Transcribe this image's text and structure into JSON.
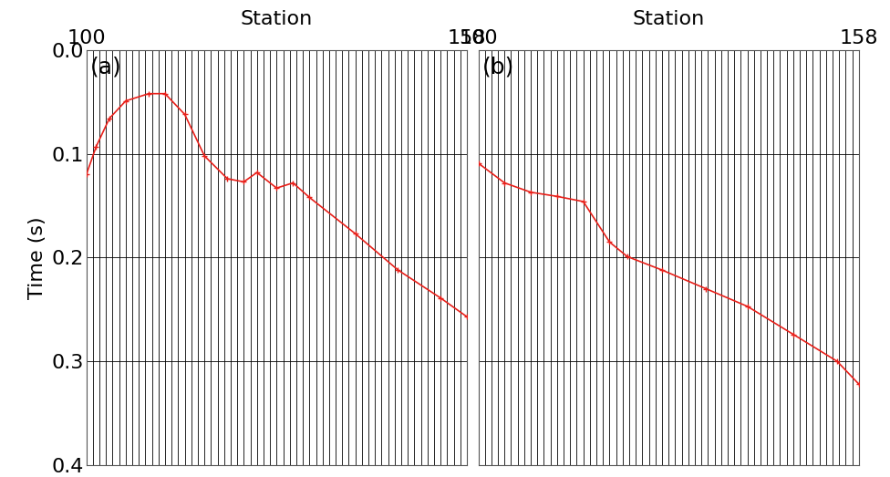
{
  "chart_data": [
    {
      "type": "line",
      "annotation": "(a)",
      "x_label": "Station",
      "y_label": "Time (s)",
      "xlim": [
        100,
        158
      ],
      "xticks": [
        100,
        158
      ],
      "ylim": [
        0.4,
        0
      ],
      "yticks": [
        {
          "value": 0,
          "label": "0.0"
        },
        {
          "value": 0.1,
          "label": "0.1"
        },
        {
          "value": 0.2,
          "label": "0.2"
        },
        {
          "value": 0.3,
          "label": "0.3"
        },
        {
          "value": 0.4,
          "label": "0.4"
        }
      ],
      "grid": true,
      "tick_labels": true,
      "color": "#e8201a",
      "marker": "+",
      "x": [
        100,
        101.5,
        103.5,
        106,
        109.5,
        112,
        115,
        118,
        121.5,
        124,
        126,
        129,
        131.5,
        134,
        141,
        147.5,
        154,
        158
      ],
      "values": [
        0.12,
        0.093,
        0.066,
        0.049,
        0.042,
        0.042,
        0.062,
        0.102,
        0.124,
        0.127,
        0.118,
        0.133,
        0.128,
        0.142,
        0.177,
        0.212,
        0.239,
        0.257
      ]
    },
    {
      "type": "line",
      "annotation": "(b)",
      "x_label": "Station",
      "xlim": [
        100,
        158
      ],
      "xticks": [
        100,
        158
      ],
      "ylim": [
        0.4,
        0
      ],
      "yticks": [
        0,
        0.1,
        0.2,
        0.3,
        0.4
      ],
      "grid": true,
      "tick_labels": "x",
      "color": "#e8201a",
      "marker": "+",
      "x": [
        100,
        104,
        108,
        112,
        116,
        120,
        122.7,
        128,
        134.7,
        141,
        148,
        154.7,
        158
      ],
      "values": [
        0.109,
        0.128,
        0.137,
        0.141,
        0.146,
        0.185,
        0.199,
        0.212,
        0.23,
        0.247,
        0.274,
        0.3,
        0.322
      ]
    }
  ]
}
